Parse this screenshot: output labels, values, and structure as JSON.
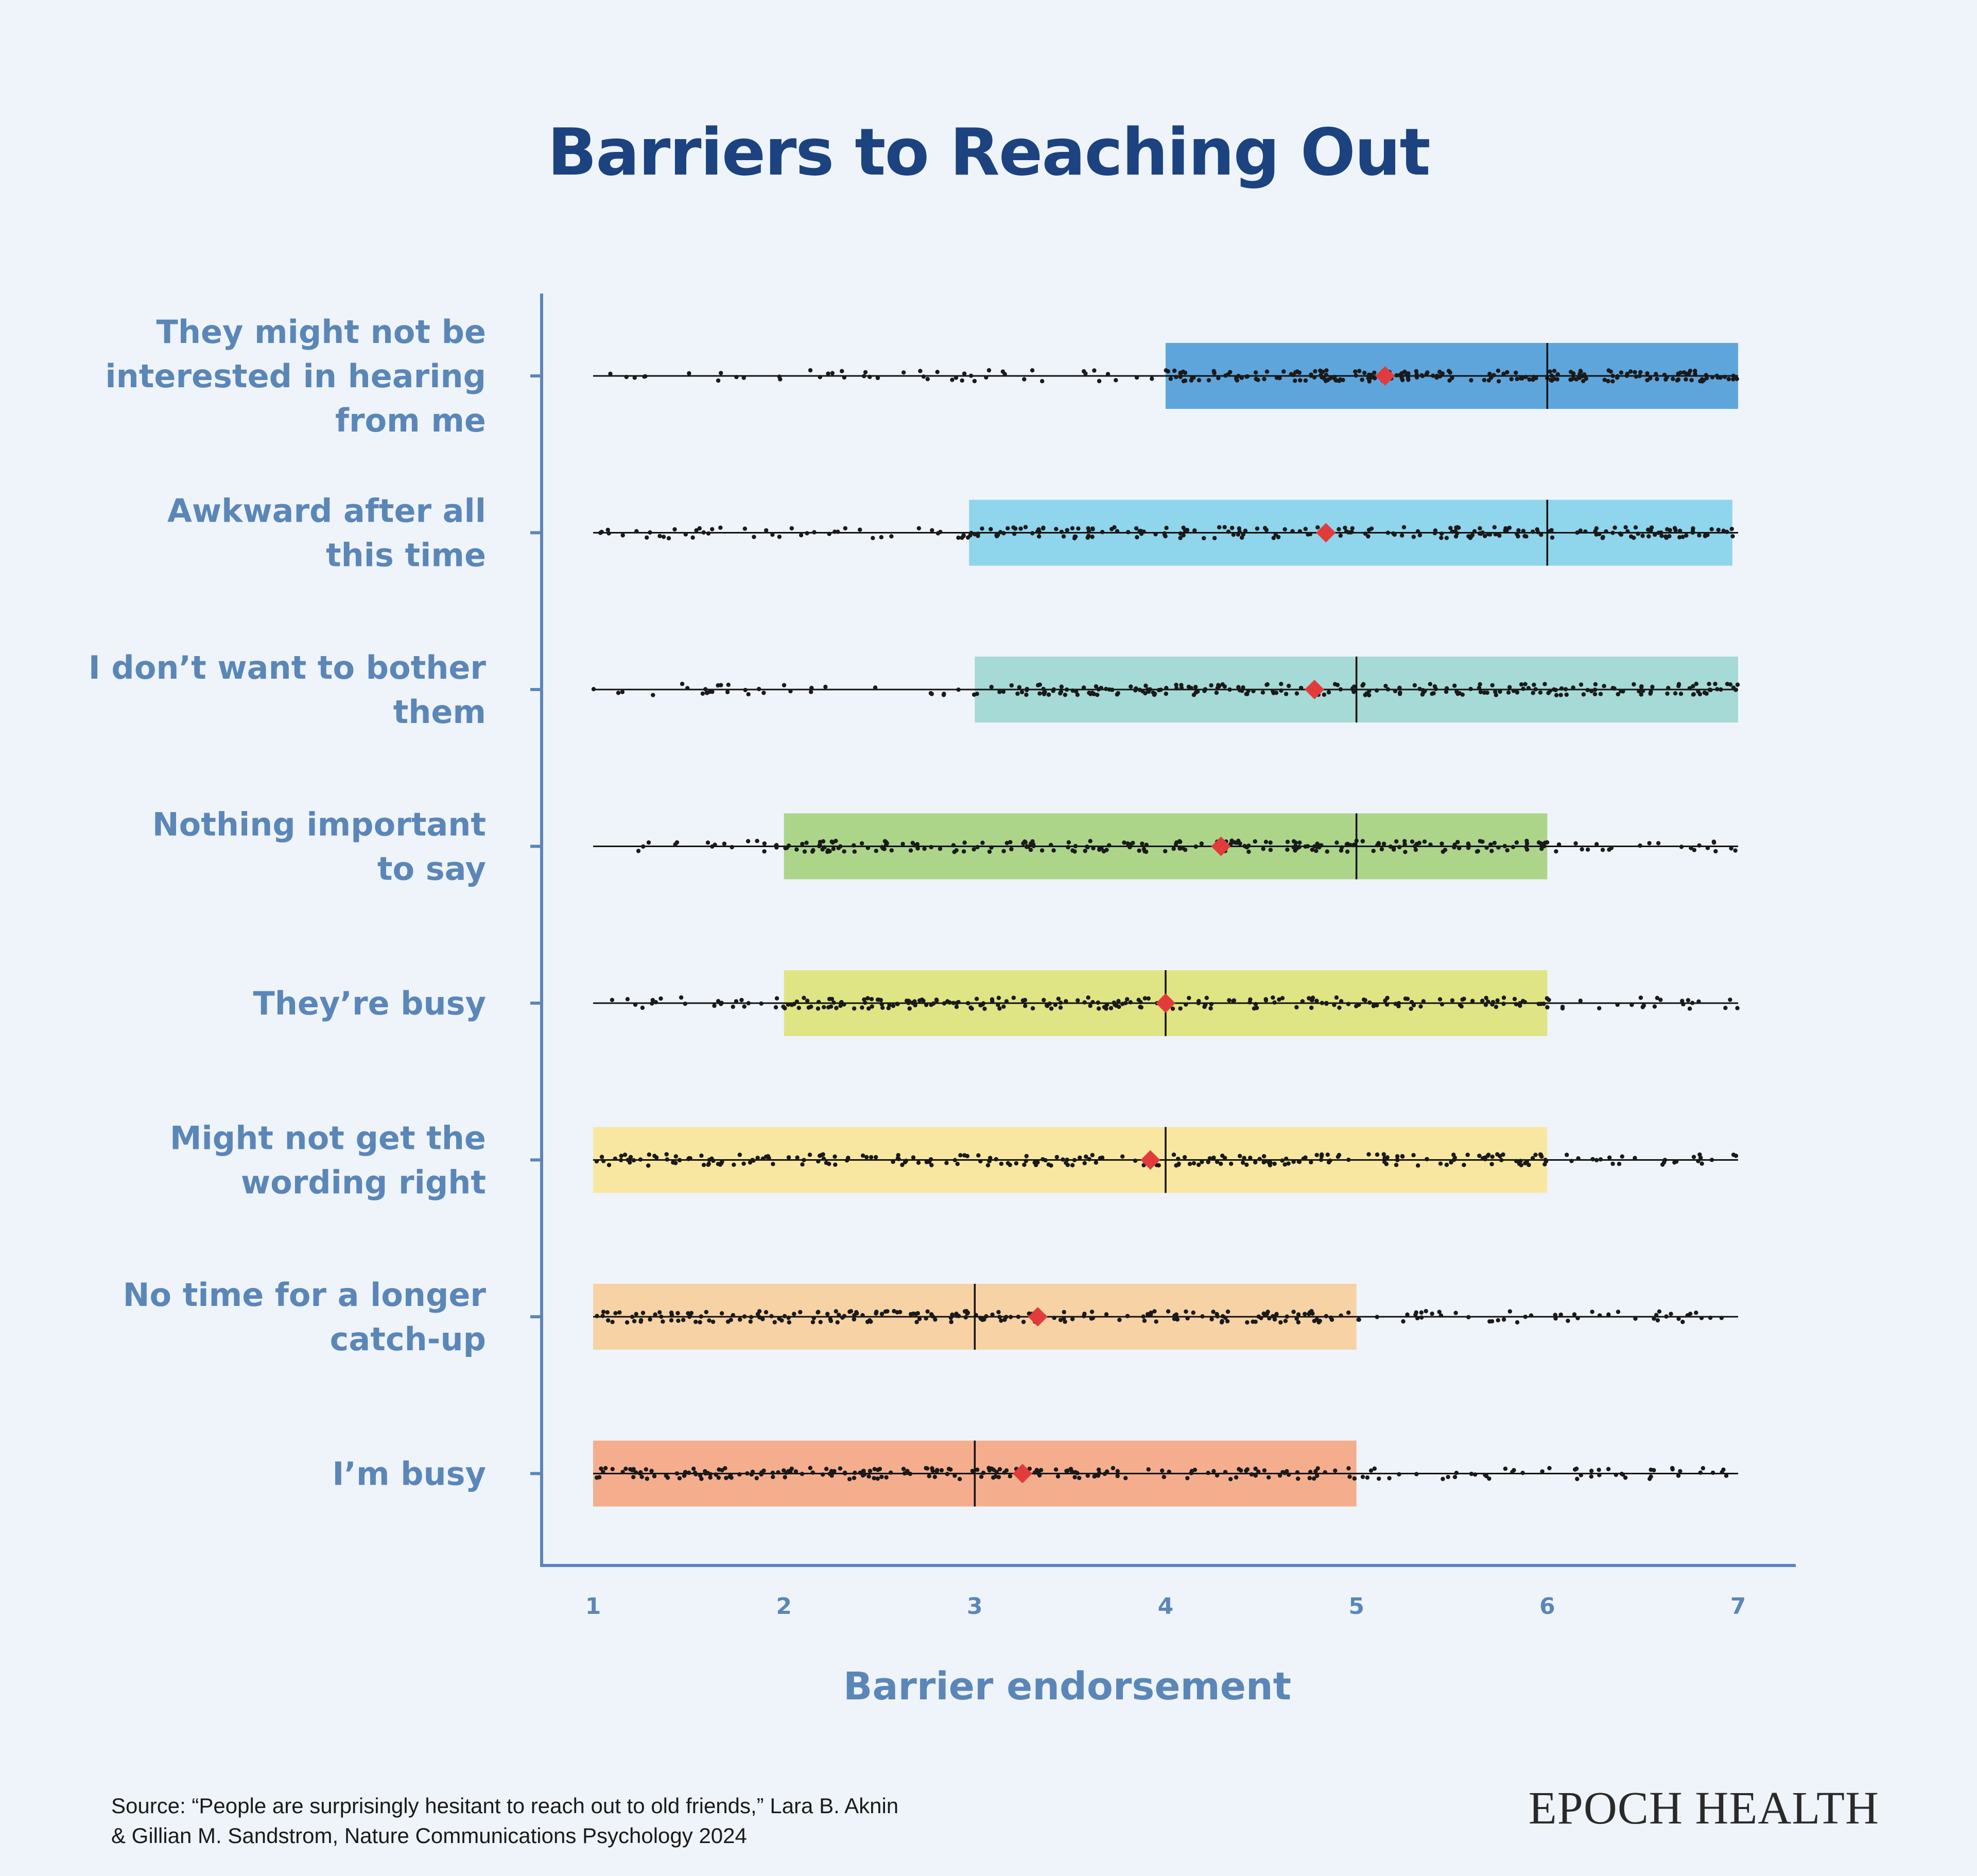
{
  "chart_data": {
    "type": "box",
    "title": "Barriers to Reaching Out",
    "xlabel": "Barrier endorsement",
    "ylabel": "",
    "xlim": [
      1,
      7
    ],
    "xticks": [
      1,
      2,
      3,
      4,
      5,
      6,
      7
    ],
    "grid": false,
    "legend": "none",
    "mean_marker_color": "#e23b3b",
    "categories": [
      {
        "label_lines": [
          "They might not be",
          "interested in hearing",
          "from me"
        ],
        "q1": 4.0,
        "median": 6.0,
        "q3": 7.0,
        "mean": 5.15,
        "whisker_min": 1,
        "whisker_max": 7,
        "color": "#5ea5dc"
      },
      {
        "label_lines": [
          "Awkward after all",
          "this time"
        ],
        "q1": 2.97,
        "median": 6.0,
        "q3": 6.97,
        "mean": 4.84,
        "whisker_min": 1,
        "whisker_max": 7,
        "color": "#8fd5ec"
      },
      {
        "label_lines": [
          "I don’t want to bother",
          "them"
        ],
        "q1": 3.0,
        "median": 5.0,
        "q3": 7.0,
        "mean": 4.78,
        "whisker_min": 1,
        "whisker_max": 7,
        "color": "#a6dad6"
      },
      {
        "label_lines": [
          "Nothing important",
          "to say"
        ],
        "q1": 2.0,
        "median": 5.0,
        "q3": 6.0,
        "mean": 4.29,
        "whisker_min": 1,
        "whisker_max": 7,
        "color": "#acd58a"
      },
      {
        "label_lines": [
          "They’re busy"
        ],
        "q1": 2.0,
        "median": 4.0,
        "q3": 6.0,
        "mean": 4.0,
        "whisker_min": 1,
        "whisker_max": 7,
        "color": "#dfe584"
      },
      {
        "label_lines": [
          "Might not get the",
          "wording right"
        ],
        "q1": 1.0,
        "median": 4.0,
        "q3": 6.0,
        "mean": 3.92,
        "whisker_min": 1,
        "whisker_max": 7,
        "color": "#f8e7a0"
      },
      {
        "label_lines": [
          "No time for a longer",
          "catch-up"
        ],
        "q1": 1.0,
        "median": 3.0,
        "q3": 5.0,
        "mean": 3.33,
        "whisker_min": 1,
        "whisker_max": 7,
        "color": "#f7d2a4"
      },
      {
        "label_lines": [
          "I’m busy"
        ],
        "q1": 1.0,
        "median": 3.0,
        "q3": 5.0,
        "mean": 3.25,
        "whisker_min": 1,
        "whisker_max": 7,
        "color": "#f4ae8e"
      }
    ]
  },
  "footer": {
    "source_lines": [
      "Source: “People are surprisingly hesitant to reach out to old friends,” Lara B. Aknin",
      "& Gillian M. Sandstrom, Nature Communications Psychology 2024"
    ],
    "brand": "EPOCH HEALTH"
  }
}
